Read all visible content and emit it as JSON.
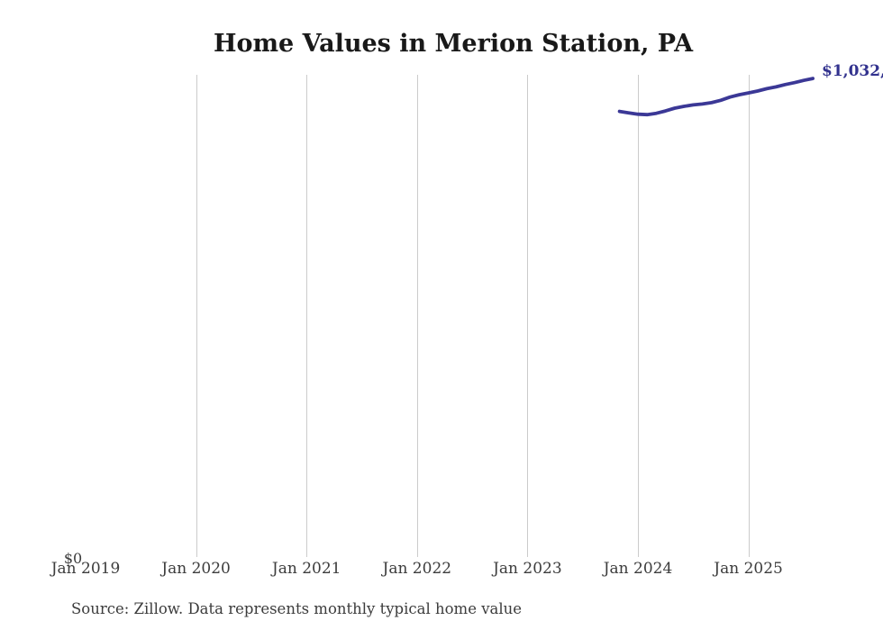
{
  "source_note": "Source: Zillow. Data represents monthly typical home value",
  "chart_data": {
    "type": "line",
    "title": "Home Values in Merion Station, PA",
    "xlabel": "",
    "ylabel": "",
    "ylim": [
      0,
      1040000
    ],
    "grid": "vertical-only",
    "legend": "none",
    "x_ticks": [
      "Jan 2019",
      "Jan 2020",
      "Jan 2021",
      "Jan 2022",
      "Jan 2023",
      "Jan 2024",
      "Jan 2025"
    ],
    "y_ticks": [
      "$0"
    ],
    "end_label": "$1,032,",
    "line_color": "#3b3896",
    "label_color": "#32328e",
    "grid_color": "#cbcbcb",
    "series": [
      {
        "name": "Monthly typical home value",
        "x": [
          "2023-11",
          "2023-12",
          "2024-01",
          "2024-02",
          "2024-03",
          "2024-04",
          "2024-05",
          "2024-06",
          "2024-07",
          "2024-08",
          "2024-09",
          "2024-10",
          "2024-11",
          "2024-12",
          "2025-01",
          "2025-02",
          "2025-03",
          "2025-04",
          "2025-05",
          "2025-06",
          "2025-07",
          "2025-08"
        ],
        "values": [
          961000,
          958000,
          955000,
          954000,
          957000,
          962000,
          968000,
          972000,
          975000,
          977000,
          980000,
          985000,
          992000,
          997000,
          1001000,
          1005000,
          1010000,
          1014000,
          1019000,
          1023000,
          1028000,
          1032000
        ]
      }
    ]
  }
}
